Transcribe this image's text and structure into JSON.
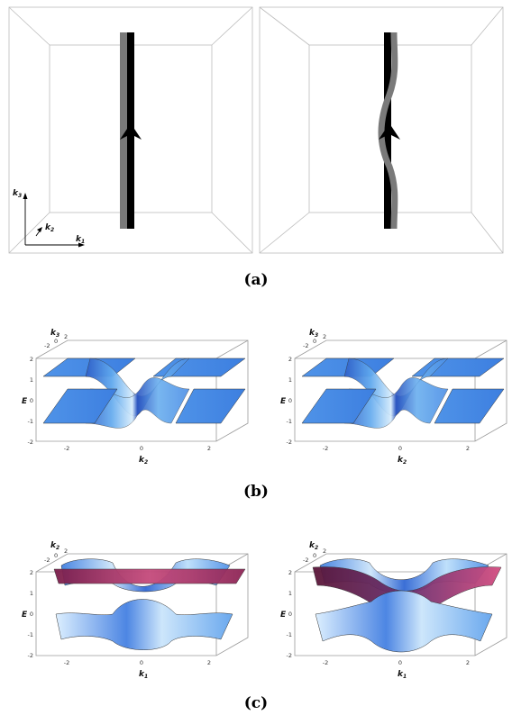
{
  "panel_a": {
    "caption": "(a)",
    "axis_labels": {
      "k3": "k",
      "k3_sub": "3",
      "k2": "k",
      "k2_sub": "2",
      "k1": "k",
      "k1_sub": "1"
    }
  },
  "panel_b": {
    "caption": "(b)",
    "ylabel": "E",
    "xlabel": "k",
    "xlabel_sub": "2",
    "depth_label": "k",
    "depth_label_sub": "3",
    "yticks": [
      "2",
      "1",
      "0",
      "-1",
      "-2"
    ],
    "xticks": [
      "-2",
      "0",
      "2"
    ],
    "depth_ticks": [
      "-2",
      "0",
      "2"
    ]
  },
  "panel_c": {
    "caption": "(c)",
    "ylabel": "E",
    "xlabel": "k",
    "xlabel_sub": "1",
    "depth_label": "k",
    "depth_label_sub": "2",
    "yticks": [
      "2",
      "1",
      "0",
      "-1",
      "-2"
    ],
    "xticks": [
      "-2",
      "0",
      "2"
    ],
    "depth_ticks": [
      "-2",
      "0",
      "2"
    ]
  },
  "colors": {
    "band_light": "#cfe6fa",
    "band_mid": "#5fa8ee",
    "band_dark": "#2f5fc8",
    "surface_magenta": "#b83a6e",
    "line_black": "#000000",
    "line_gray": "#7a7a7a"
  }
}
